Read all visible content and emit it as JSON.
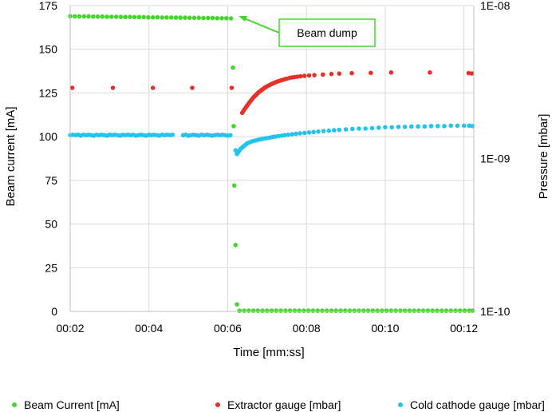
{
  "chart_data": {
    "type": "scatter",
    "x_axis": {
      "label": "Time [mm:ss]",
      "range_seconds": [
        120,
        735
      ],
      "ticks": [
        {
          "value": 120,
          "label": "00:02"
        },
        {
          "value": 240,
          "label": "00:04"
        },
        {
          "value": 360,
          "label": "00:06"
        },
        {
          "value": 480,
          "label": "00:08"
        },
        {
          "value": 600,
          "label": "00:10"
        },
        {
          "value": 720,
          "label": "00:12"
        }
      ]
    },
    "y_axis_left": {
      "label": "Beam current [mA]",
      "range": [
        0,
        175
      ],
      "ticks": [
        0,
        25,
        50,
        75,
        100,
        125,
        150,
        175
      ]
    },
    "y_axis_right": {
      "label": "Pressure [mbar]",
      "scale": "log",
      "range": [
        1e-10,
        1e-08
      ],
      "ticks": [
        {
          "value": 1e-10,
          "label": "1E-10"
        },
        {
          "value": 1e-09,
          "label": "1E-09"
        },
        {
          "value": 1e-08,
          "label": "1E-08"
        }
      ]
    },
    "grid": true,
    "legend_position": "bottom",
    "annotation": {
      "text": "Beam dump",
      "target": {
        "x": 366,
        "y": 168.5
      }
    },
    "series": [
      {
        "name": "Beam Current [mA]",
        "axis": "left",
        "color": "#44d62c",
        "points": [
          [
            120,
            168.9
          ],
          [
            127,
            168.9
          ],
          [
            134,
            168.8
          ],
          [
            141,
            168.8
          ],
          [
            148,
            168.8
          ],
          [
            155,
            168.7
          ],
          [
            162,
            168.7
          ],
          [
            169,
            168.7
          ],
          [
            176,
            168.6
          ],
          [
            183,
            168.6
          ],
          [
            190,
            168.6
          ],
          [
            197,
            168.5
          ],
          [
            204,
            168.5
          ],
          [
            211,
            168.5
          ],
          [
            218,
            168.4
          ],
          [
            225,
            168.4
          ],
          [
            232,
            168.4
          ],
          [
            239,
            168.3
          ],
          [
            246,
            168.3
          ],
          [
            253,
            168.3
          ],
          [
            260,
            168.2
          ],
          [
            267,
            168.2
          ],
          [
            274,
            168.2
          ],
          [
            281,
            168.1
          ],
          [
            288,
            168.1
          ],
          [
            295,
            168.1
          ],
          [
            302,
            168.0
          ],
          [
            309,
            168.0
          ],
          [
            316,
            168.0
          ],
          [
            323,
            167.9
          ],
          [
            330,
            167.9
          ],
          [
            337,
            167.9
          ],
          [
            344,
            167.8
          ],
          [
            351,
            167.8
          ],
          [
            358,
            167.8
          ],
          [
            365,
            167.7
          ],
          [
            368,
            139.5
          ],
          [
            369,
            106
          ],
          [
            370,
            72
          ],
          [
            372,
            38
          ],
          [
            374,
            4
          ],
          [
            378,
            0.4
          ],
          [
            385,
            0.4
          ],
          [
            392,
            0.4
          ],
          [
            399,
            0.4
          ],
          [
            406,
            0.4
          ],
          [
            413,
            0.4
          ],
          [
            420,
            0.4
          ],
          [
            427,
            0.4
          ],
          [
            434,
            0.4
          ],
          [
            441,
            0.4
          ],
          [
            448,
            0.4
          ],
          [
            455,
            0.4
          ],
          [
            462,
            0.4
          ],
          [
            469,
            0.4
          ],
          [
            476,
            0.4
          ],
          [
            483,
            0.4
          ],
          [
            490,
            0.4
          ],
          [
            497,
            0.4
          ],
          [
            504,
            0.4
          ],
          [
            511,
            0.4
          ],
          [
            518,
            0.4
          ],
          [
            525,
            0.4
          ],
          [
            532,
            0.4
          ],
          [
            539,
            0.4
          ],
          [
            546,
            0.4
          ],
          [
            553,
            0.4
          ],
          [
            560,
            0.4
          ],
          [
            567,
            0.4
          ],
          [
            574,
            0.4
          ],
          [
            581,
            0.4
          ],
          [
            588,
            0.4
          ],
          [
            595,
            0.4
          ],
          [
            602,
            0.4
          ],
          [
            609,
            0.4
          ],
          [
            616,
            0.4
          ],
          [
            623,
            0.4
          ],
          [
            630,
            0.4
          ],
          [
            637,
            0.4
          ],
          [
            644,
            0.4
          ],
          [
            651,
            0.4
          ],
          [
            658,
            0.4
          ],
          [
            665,
            0.4
          ],
          [
            672,
            0.4
          ],
          [
            679,
            0.4
          ],
          [
            686,
            0.4
          ],
          [
            693,
            0.4
          ],
          [
            700,
            0.4
          ],
          [
            707,
            0.4
          ],
          [
            714,
            0.4
          ],
          [
            721,
            0.4
          ],
          [
            728,
            0.4
          ],
          [
            733,
            0.4
          ]
        ]
      },
      {
        "name": "Extractor gauge [mbar]",
        "axis": "right",
        "color": "#e8302a",
        "points": [
          [
            123,
            2.9e-09
          ],
          [
            185,
            2.9e-09
          ],
          [
            246,
            2.9e-09
          ],
          [
            306,
            2.9e-09
          ],
          [
            366,
            2.9e-09
          ],
          [
            382,
            1.99e-09
          ],
          [
            384,
            2.05e-09
          ],
          [
            386,
            2.11e-09
          ],
          [
            388,
            2.17e-09
          ],
          [
            390,
            2.23e-09
          ],
          [
            392,
            2.29e-09
          ],
          [
            394,
            2.35e-09
          ],
          [
            396,
            2.41e-09
          ],
          [
            398,
            2.47e-09
          ],
          [
            400,
            2.53e-09
          ],
          [
            402,
            2.58e-09
          ],
          [
            404,
            2.63e-09
          ],
          [
            406,
            2.68e-09
          ],
          [
            408,
            2.73e-09
          ],
          [
            410,
            2.77e-09
          ],
          [
            412,
            2.81e-09
          ],
          [
            414,
            2.85e-09
          ],
          [
            416,
            2.89e-09
          ],
          [
            418,
            2.93e-09
          ],
          [
            420,
            2.97e-09
          ],
          [
            423,
            3.01e-09
          ],
          [
            426,
            3.06e-09
          ],
          [
            429,
            3.1e-09
          ],
          [
            432,
            3.14e-09
          ],
          [
            435,
            3.18e-09
          ],
          [
            438,
            3.21e-09
          ],
          [
            441,
            3.24e-09
          ],
          [
            444,
            3.27e-09
          ],
          [
            447,
            3.3e-09
          ],
          [
            450,
            3.33e-09
          ],
          [
            454,
            3.36e-09
          ],
          [
            458,
            3.39e-09
          ],
          [
            462,
            3.41e-09
          ],
          [
            466,
            3.43e-09
          ],
          [
            471,
            3.45e-09
          ],
          [
            477,
            3.47e-09
          ],
          [
            484,
            3.49e-09
          ],
          [
            492,
            3.51e-09
          ],
          [
            505,
            3.54e-09
          ],
          [
            518,
            3.57e-09
          ],
          [
            530,
            3.59e-09
          ],
          [
            549,
            3.61e-09
          ],
          [
            578,
            3.63e-09
          ],
          [
            609,
            3.65e-09
          ],
          [
            668,
            3.65e-09
          ],
          [
            727,
            3.62e-09
          ],
          [
            732,
            3.6e-09
          ]
        ]
      },
      {
        "name": "Cold cathode gauge [mbar]",
        "axis": "right",
        "color": "#22c4ec",
        "points": [
          [
            120,
            1.42e-09
          ],
          [
            124,
            1.43e-09
          ],
          [
            128,
            1.42e-09
          ],
          [
            132,
            1.43e-09
          ],
          [
            136,
            1.41e-09
          ],
          [
            140,
            1.43e-09
          ],
          [
            144,
            1.42e-09
          ],
          [
            148,
            1.43e-09
          ],
          [
            152,
            1.42e-09
          ],
          [
            156,
            1.41e-09
          ],
          [
            160,
            1.43e-09
          ],
          [
            164,
            1.42e-09
          ],
          [
            168,
            1.43e-09
          ],
          [
            172,
            1.42e-09
          ],
          [
            176,
            1.41e-09
          ],
          [
            180,
            1.43e-09
          ],
          [
            184,
            1.42e-09
          ],
          [
            188,
            1.43e-09
          ],
          [
            192,
            1.42e-09
          ],
          [
            196,
            1.41e-09
          ],
          [
            200,
            1.43e-09
          ],
          [
            204,
            1.42e-09
          ],
          [
            208,
            1.43e-09
          ],
          [
            212,
            1.42e-09
          ],
          [
            216,
            1.43e-09
          ],
          [
            220,
            1.41e-09
          ],
          [
            224,
            1.42e-09
          ],
          [
            228,
            1.43e-09
          ],
          [
            232,
            1.42e-09
          ],
          [
            236,
            1.41e-09
          ],
          [
            240,
            1.43e-09
          ],
          [
            244,
            1.42e-09
          ],
          [
            248,
            1.43e-09
          ],
          [
            252,
            1.42e-09
          ],
          [
            256,
            1.41e-09
          ],
          [
            260,
            1.43e-09
          ],
          [
            264,
            1.42e-09
          ],
          [
            268,
            1.43e-09
          ],
          [
            272,
            1.42e-09
          ],
          [
            276,
            1.43e-09
          ],
          [
            292,
            1.42e-09
          ],
          [
            296,
            1.43e-09
          ],
          [
            300,
            1.41e-09
          ],
          [
            304,
            1.42e-09
          ],
          [
            308,
            1.43e-09
          ],
          [
            312,
            1.42e-09
          ],
          [
            316,
            1.41e-09
          ],
          [
            320,
            1.43e-09
          ],
          [
            324,
            1.42e-09
          ],
          [
            328,
            1.43e-09
          ],
          [
            332,
            1.42e-09
          ],
          [
            336,
            1.41e-09
          ],
          [
            340,
            1.42e-09
          ],
          [
            344,
            1.43e-09
          ],
          [
            348,
            1.42e-09
          ],
          [
            352,
            1.43e-09
          ],
          [
            356,
            1.42e-09
          ],
          [
            360,
            1.41e-09
          ],
          [
            364,
            1.42e-09
          ],
          [
            372,
            1.13e-09
          ],
          [
            374,
            1.07e-09
          ],
          [
            376,
            1.1e-09
          ],
          [
            378,
            1.13e-09
          ],
          [
            380,
            1.16e-09
          ],
          [
            382,
            1.18e-09
          ],
          [
            384,
            1.2e-09
          ],
          [
            386,
            1.22e-09
          ],
          [
            388,
            1.24e-09
          ],
          [
            390,
            1.26e-09
          ],
          [
            393,
            1.27e-09
          ],
          [
            396,
            1.29e-09
          ],
          [
            399,
            1.3e-09
          ],
          [
            402,
            1.31e-09
          ],
          [
            405,
            1.32e-09
          ],
          [
            408,
            1.33e-09
          ],
          [
            412,
            1.34e-09
          ],
          [
            416,
            1.35e-09
          ],
          [
            420,
            1.36e-09
          ],
          [
            424,
            1.37e-09
          ],
          [
            428,
            1.38e-09
          ],
          [
            432,
            1.39e-09
          ],
          [
            437,
            1.4e-09
          ],
          [
            442,
            1.41e-09
          ],
          [
            447,
            1.42e-09
          ],
          [
            452,
            1.43e-09
          ],
          [
            458,
            1.44e-09
          ],
          [
            464,
            1.45e-09
          ],
          [
            470,
            1.46e-09
          ],
          [
            477,
            1.47e-09
          ],
          [
            484,
            1.48e-09
          ],
          [
            491,
            1.49e-09
          ],
          [
            498,
            1.5e-09
          ],
          [
            506,
            1.51e-09
          ],
          [
            514,
            1.52e-09
          ],
          [
            522,
            1.53e-09
          ],
          [
            530,
            1.54e-09
          ],
          [
            540,
            1.55e-09
          ],
          [
            550,
            1.56e-09
          ],
          [
            560,
            1.57e-09
          ],
          [
            570,
            1.57e-09
          ],
          [
            580,
            1.58e-09
          ],
          [
            590,
            1.59e-09
          ],
          [
            600,
            1.6e-09
          ],
          [
            610,
            1.6e-09
          ],
          [
            620,
            1.61e-09
          ],
          [
            630,
            1.61e-09
          ],
          [
            640,
            1.62e-09
          ],
          [
            650,
            1.62e-09
          ],
          [
            660,
            1.62e-09
          ],
          [
            670,
            1.63e-09
          ],
          [
            680,
            1.63e-09
          ],
          [
            690,
            1.63e-09
          ],
          [
            700,
            1.64e-09
          ],
          [
            710,
            1.64e-09
          ],
          [
            720,
            1.64e-09
          ],
          [
            728,
            1.64e-09
          ],
          [
            733,
            1.63e-09
          ]
        ]
      }
    ]
  }
}
